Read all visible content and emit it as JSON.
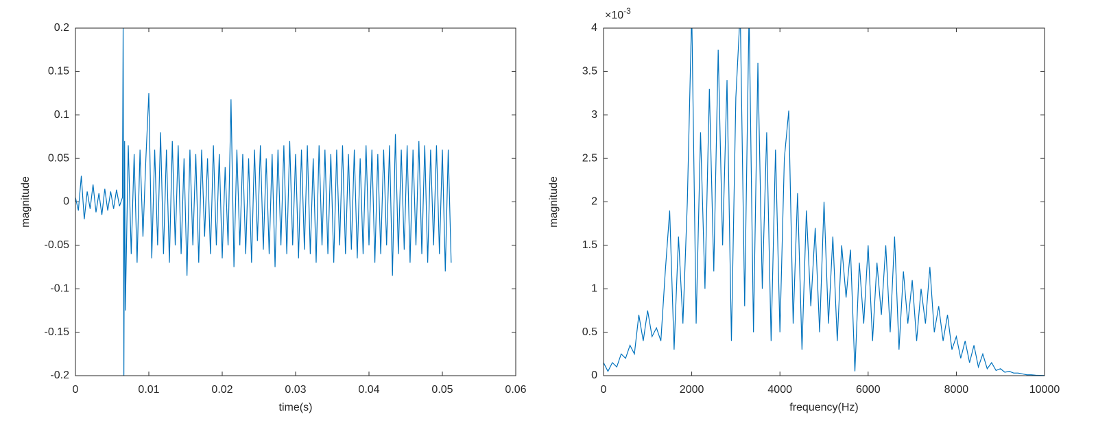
{
  "chart_data": [
    {
      "type": "line",
      "xlabel": "time(s)",
      "ylabel": "magnitude",
      "xlim": [
        0,
        0.06
      ],
      "ylim": [
        -0.2,
        0.2
      ],
      "xticks": [
        0,
        0.01,
        0.02,
        0.03,
        0.04,
        0.05,
        0.06
      ],
      "yticks": [
        -0.2,
        -0.15,
        -0.1,
        -0.05,
        0,
        0.05,
        0.1,
        0.15,
        0.2
      ],
      "grid": false,
      "x": [
        0,
        0.0004,
        0.0008,
        0.0012,
        0.0016,
        0.002,
        0.0024,
        0.0028,
        0.0032,
        0.0036,
        0.004,
        0.0044,
        0.0048,
        0.0052,
        0.0056,
        0.006,
        0.0064,
        0.0065,
        0.0066,
        0.0067,
        0.0068,
        0.0072,
        0.0076,
        0.008,
        0.0084,
        0.0088,
        0.0092,
        0.0096,
        0.01,
        0.0104,
        0.0108,
        0.0112,
        0.0116,
        0.012,
        0.0124,
        0.0128,
        0.0132,
        0.0136,
        0.014,
        0.0144,
        0.0148,
        0.0152,
        0.0156,
        0.016,
        0.0164,
        0.0168,
        0.0172,
        0.0176,
        0.018,
        0.0184,
        0.0188,
        0.0192,
        0.0196,
        0.02,
        0.0204,
        0.0208,
        0.0212,
        0.0216,
        0.022,
        0.0224,
        0.0228,
        0.0232,
        0.0236,
        0.024,
        0.0244,
        0.0248,
        0.0252,
        0.0256,
        0.026,
        0.0264,
        0.0268,
        0.0272,
        0.0276,
        0.028,
        0.0284,
        0.0288,
        0.0292,
        0.0296,
        0.03,
        0.0304,
        0.0308,
        0.0312,
        0.0316,
        0.032,
        0.0324,
        0.0328,
        0.0332,
        0.0336,
        0.034,
        0.0344,
        0.0348,
        0.0352,
        0.0356,
        0.036,
        0.0364,
        0.0368,
        0.0372,
        0.0376,
        0.038,
        0.0384,
        0.0388,
        0.0392,
        0.0396,
        0.04,
        0.0404,
        0.0408,
        0.0412,
        0.0416,
        0.042,
        0.0424,
        0.0428,
        0.0432,
        0.0436,
        0.044,
        0.0444,
        0.0448,
        0.0452,
        0.0456,
        0.046,
        0.0464,
        0.0468,
        0.0472,
        0.0476,
        0.048,
        0.0484,
        0.0488,
        0.0492,
        0.0496,
        0.05,
        0.0504,
        0.0508,
        0.0512
      ],
      "series": [
        {
          "color": "#0072bd",
          "values": [
            0.005,
            -0.01,
            0.03,
            -0.02,
            0.012,
            -0.008,
            0.02,
            -0.012,
            0.01,
            -0.015,
            0.015,
            -0.01,
            0.012,
            -0.008,
            0.014,
            -0.005,
            0.005,
            0.2,
            -0.2,
            0.07,
            -0.125,
            0.065,
            -0.06,
            0.055,
            -0.07,
            0.06,
            -0.04,
            0.05,
            0.125,
            -0.065,
            0.06,
            -0.05,
            0.08,
            -0.06,
            0.06,
            -0.07,
            0.07,
            -0.05,
            0.065,
            -0.06,
            0.05,
            -0.085,
            0.06,
            -0.05,
            0.055,
            -0.07,
            0.06,
            -0.04,
            0.05,
            -0.06,
            0.065,
            -0.05,
            0.055,
            -0.065,
            0.04,
            -0.05,
            0.118,
            -0.075,
            0.06,
            -0.05,
            0.055,
            -0.06,
            0.05,
            -0.07,
            0.06,
            -0.045,
            0.065,
            -0.055,
            0.05,
            -0.06,
            0.055,
            -0.075,
            0.06,
            -0.05,
            0.065,
            -0.06,
            0.07,
            -0.05,
            0.055,
            -0.065,
            0.06,
            -0.055,
            0.065,
            -0.06,
            0.05,
            -0.07,
            0.065,
            -0.05,
            0.06,
            -0.06,
            0.055,
            -0.07,
            0.06,
            -0.05,
            0.065,
            -0.06,
            0.055,
            -0.055,
            0.06,
            -0.065,
            0.05,
            -0.06,
            0.065,
            -0.05,
            0.06,
            -0.07,
            0.055,
            -0.06,
            0.06,
            -0.05,
            0.065,
            -0.085,
            0.078,
            -0.06,
            0.06,
            -0.055,
            0.065,
            -0.07,
            0.06,
            -0.05,
            0.07,
            -0.06,
            0.065,
            -0.07,
            0.06,
            -0.05,
            0.065,
            -0.06,
            0.06,
            -0.08,
            0.06,
            -0.07
          ]
        }
      ]
    },
    {
      "type": "line",
      "xlabel": "frequency(Hz)",
      "ylabel": "magnitude",
      "y_scale_base": "×10",
      "y_scale_exponent": "-3",
      "xlim": [
        0,
        10000
      ],
      "ylim": [
        0,
        4
      ],
      "xticks": [
        0,
        2000,
        4000,
        6000,
        8000,
        10000
      ],
      "yticks": [
        0,
        0.5,
        1,
        1.5,
        2,
        2.5,
        3,
        3.5,
        4
      ],
      "grid": false,
      "x": [
        0,
        100,
        200,
        300,
        400,
        500,
        600,
        700,
        800,
        900,
        1000,
        1100,
        1200,
        1300,
        1400,
        1500,
        1600,
        1700,
        1800,
        1900,
        2000,
        2100,
        2200,
        2300,
        2400,
        2500,
        2600,
        2700,
        2800,
        2900,
        3000,
        3100,
        3200,
        3300,
        3400,
        3500,
        3600,
        3700,
        3800,
        3900,
        4000,
        4100,
        4200,
        4300,
        4400,
        4500,
        4600,
        4700,
        4800,
        4900,
        5000,
        5100,
        5200,
        5300,
        5400,
        5500,
        5600,
        5700,
        5800,
        5900,
        6000,
        6100,
        6200,
        6300,
        6400,
        6500,
        6600,
        6700,
        6800,
        6900,
        7000,
        7100,
        7200,
        7300,
        7400,
        7500,
        7600,
        7700,
        7800,
        7900,
        8000,
        8100,
        8200,
        8300,
        8400,
        8500,
        8600,
        8700,
        8800,
        8900,
        9000,
        9100,
        9200,
        9300,
        9400,
        9500,
        9600,
        9700,
        9800,
        9900,
        10000
      ],
      "series": [
        {
          "color": "#0072bd",
          "values": [
            0.15,
            0.05,
            0.15,
            0.1,
            0.25,
            0.2,
            0.35,
            0.25,
            0.7,
            0.4,
            0.75,
            0.45,
            0.55,
            0.4,
            1.2,
            1.9,
            0.3,
            1.6,
            0.6,
            2.0,
            4.2,
            0.6,
            2.8,
            1.0,
            3.3,
            1.2,
            3.75,
            1.5,
            3.4,
            0.4,
            3.2,
            4.2,
            0.8,
            4.2,
            0.5,
            3.6,
            1.0,
            2.8,
            0.4,
            2.6,
            0.5,
            2.5,
            3.05,
            0.6,
            2.1,
            0.3,
            1.9,
            0.8,
            1.7,
            0.5,
            2.0,
            0.6,
            1.6,
            0.4,
            1.5,
            0.9,
            1.45,
            0.05,
            1.3,
            0.6,
            1.5,
            0.4,
            1.3,
            0.7,
            1.5,
            0.5,
            1.6,
            0.3,
            1.2,
            0.6,
            1.1,
            0.4,
            1.0,
            0.6,
            1.25,
            0.5,
            0.8,
            0.4,
            0.7,
            0.3,
            0.45,
            0.2,
            0.4,
            0.15,
            0.35,
            0.1,
            0.25,
            0.08,
            0.15,
            0.06,
            0.08,
            0.04,
            0.05,
            0.03,
            0.03,
            0.02,
            0.01,
            0.01,
            0.005,
            0.003,
            0.002
          ]
        }
      ]
    }
  ]
}
